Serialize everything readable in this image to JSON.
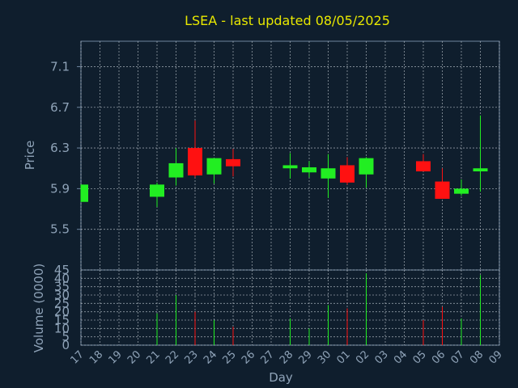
{
  "chart_data": {
    "type": "candlestick",
    "title": "LSEA - last updated 08/05/2025",
    "xlabel": "Day",
    "ylabel_price": "Price",
    "ylabel_volume": "Volume (0000)",
    "x_ticks": [
      "17",
      "18",
      "19",
      "20",
      "21",
      "22",
      "23",
      "24",
      "25",
      "26",
      "27",
      "28",
      "29",
      "30",
      "01",
      "02",
      "03",
      "04",
      "05",
      "06",
      "07",
      "08",
      "09"
    ],
    "price_ticks": [
      "5.5",
      "5.9",
      "6.3",
      "6.7",
      "7.1"
    ],
    "volume_ticks": [
      "0",
      "5",
      "10",
      "15",
      "20",
      "25",
      "30",
      "35",
      "40",
      "45"
    ],
    "price_range": [
      5.1,
      7.35
    ],
    "volume_range": [
      0,
      45
    ],
    "grid": true,
    "colors": {
      "background": "#0f1e2d",
      "grid": "#c8d0d8",
      "axis_frame": "#6f86a0",
      "up": "#22ee22",
      "down": "#ff1111",
      "title": "#e8e800",
      "text": "#8fa3b8"
    },
    "candles": [
      {
        "day": "17",
        "open": 5.77,
        "close": 5.94,
        "high": 5.94,
        "low": 5.77,
        "volume": 0
      },
      {
        "day": "21",
        "open": 5.82,
        "close": 5.94,
        "high": 5.96,
        "low": 5.72,
        "volume": 19
      },
      {
        "day": "22",
        "open": 6.01,
        "close": 6.15,
        "high": 6.3,
        "low": 5.93,
        "volume": 30
      },
      {
        "day": "23",
        "open": 6.3,
        "close": 6.03,
        "high": 6.57,
        "low": 6.01,
        "volume": 20
      },
      {
        "day": "24",
        "open": 6.04,
        "close": 6.2,
        "high": 6.2,
        "low": 5.95,
        "volume": 15
      },
      {
        "day": "25",
        "open": 6.19,
        "close": 6.12,
        "high": 6.29,
        "low": 6.02,
        "volume": 11
      },
      {
        "day": "28",
        "open": 6.1,
        "close": 6.13,
        "high": 6.25,
        "low": 6.0,
        "volume": 16
      },
      {
        "day": "29",
        "open": 6.06,
        "close": 6.11,
        "high": 6.17,
        "low": 6.01,
        "volume": 10
      },
      {
        "day": "30",
        "open": 6.0,
        "close": 6.1,
        "high": 6.24,
        "low": 5.81,
        "volume": 24
      },
      {
        "day": "01",
        "open": 6.13,
        "close": 5.96,
        "high": 6.21,
        "low": 5.94,
        "volume": 22
      },
      {
        "day": "02",
        "open": 6.04,
        "close": 6.2,
        "high": 6.21,
        "low": 5.91,
        "volume": 43
      },
      {
        "day": "05",
        "open": 6.17,
        "close": 6.07,
        "high": 6.24,
        "low": 6.07,
        "volume": 15
      },
      {
        "day": "06",
        "open": 5.97,
        "close": 5.8,
        "high": 6.1,
        "low": 5.8,
        "volume": 23
      },
      {
        "day": "07",
        "open": 5.85,
        "close": 5.9,
        "high": 5.99,
        "low": 5.83,
        "volume": 16
      },
      {
        "day": "08",
        "open": 6.07,
        "close": 6.1,
        "high": 6.62,
        "low": 5.87,
        "volume": 42
      }
    ]
  }
}
